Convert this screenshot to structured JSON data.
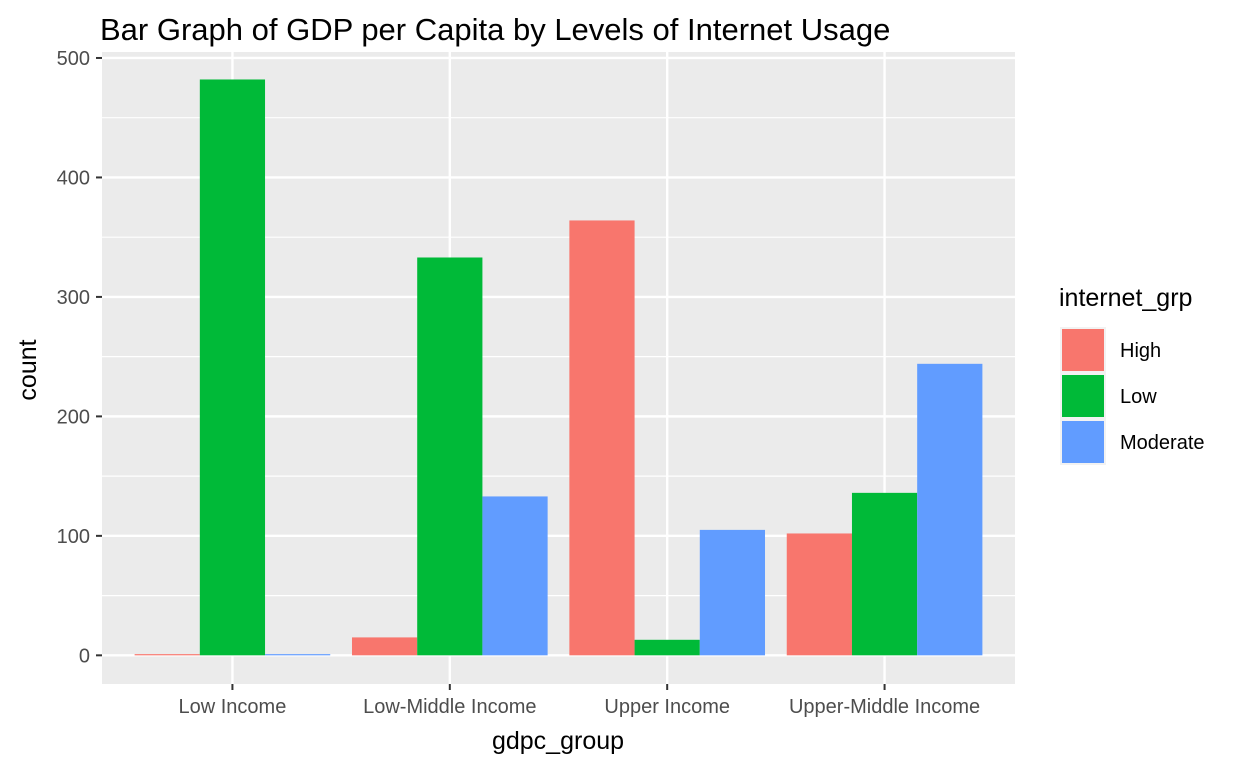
{
  "chart_data": {
    "type": "bar",
    "title": "Bar Graph of GDP per Capita by Levels of Internet Usage",
    "xlabel": "gdpc_group",
    "ylabel": "count",
    "categories": [
      "Low Income",
      "Low-Middle Income",
      "Upper Income",
      "Upper-Middle Income"
    ],
    "series": [
      {
        "name": "High",
        "color": "#F8766D",
        "values": [
          1,
          15,
          364,
          102
        ]
      },
      {
        "name": "Low",
        "color": "#00BA38",
        "values": [
          482,
          333,
          13,
          136
        ]
      },
      {
        "name": "Moderate",
        "color": "#619CFF",
        "values": [
          1,
          133,
          105,
          244
        ]
      }
    ],
    "ylim": [
      -24,
      505
    ],
    "yticks": [
      0,
      100,
      200,
      300,
      400,
      500
    ],
    "ytick_labels": [
      "0",
      "100",
      "200",
      "300",
      "400",
      "500"
    ],
    "legend_title": "internet_grp",
    "legend_position": "right",
    "grid": true,
    "panel_background": "#EBEBEB"
  }
}
